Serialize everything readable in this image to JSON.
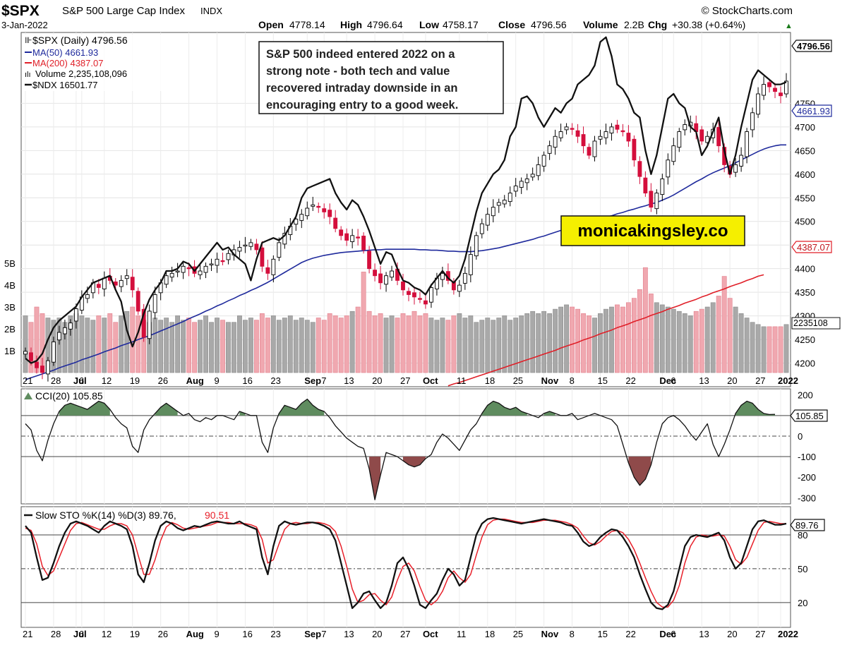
{
  "header": {
    "symbol": "$SPX",
    "name": "S&P 500 Large Cap Index",
    "exchange": "INDX",
    "date": "3-Jan-2022",
    "watermark": "© StockCharts.com",
    "open_label": "Open",
    "open": "4778.14",
    "high_label": "High",
    "high": "4796.64",
    "low_label": "Low",
    "low": "4758.17",
    "close_label": "Close",
    "close": "4796.56",
    "volume_label": "Volume",
    "volume": "2.2B",
    "chg_label": "Chg",
    "chg": "+30.38 (+0.64%)",
    "chg_arrow": "▲"
  },
  "legend": {
    "spx": "$SPX (Daily) 4796.56",
    "ma50": "MA(50) 4661.93",
    "ma200": "MA(200) 4387.07",
    "volume": "Volume 2,235,108,096",
    "ndx": "$NDX 16501.77"
  },
  "annotation": {
    "lines": [
      "S&P 500 indeed entered 2022 on a",
      "strong note - both tech and value",
      "recovered intraday downside in an",
      "encouraging entry to a good week."
    ]
  },
  "brand": "monicakingsley.co",
  "tags": {
    "price": "4796.56",
    "ma50": "4661.93",
    "ma200": "4387.07",
    "volume": "2235108",
    "cci": "105.85",
    "sto": "89.76"
  },
  "cci_legend": "CCI(20) 105.85",
  "sto_legend_a": "Slow STO %K(14) %D(3) 89.76,",
  "sto_legend_b": "90.51",
  "colors": {
    "up": "#000000",
    "down": "#d40f3c",
    "volume_up": "#a9a9a9",
    "volume_down": "#f0a8b0",
    "ma50": "#1f2a9c",
    "ma200": "#e01f28",
    "ndx": "#111111",
    "cci_fill_pos": "#5f8c5f",
    "cci_fill_neg": "#8f4a4a",
    "brand_bg": "#f5ef00",
    "sto_d": "#e8202a"
  },
  "chart_data": [
    {
      "type": "candlestick",
      "title": "$SPX S&P 500 Large Cap Index INDX",
      "x_tick_labels": [
        "21",
        "28",
        "Jul",
        "6",
        "12",
        "19",
        "26",
        "Aug",
        "9",
        "16",
        "23",
        "Sep",
        "7",
        "13",
        "20",
        "27",
        "Oct",
        "11",
        "18",
        "25",
        "Nov",
        "8",
        "15",
        "22",
        "Dec",
        "6",
        "13",
        "20",
        "27",
        "2022"
      ],
      "x_tick_days": [
        0,
        5,
        9,
        10,
        14,
        19,
        24,
        29,
        34,
        39,
        44,
        50,
        53,
        57,
        62,
        67,
        71,
        77,
        82,
        87,
        92,
        97,
        102,
        107,
        113,
        115,
        120,
        125,
        130,
        134
      ],
      "ylim": [
        4150,
        4900
      ],
      "y_ticks": [
        4200,
        4250,
        4300,
        4350,
        4400,
        4450,
        4500,
        4550,
        4600,
        4650,
        4700,
        4750
      ],
      "close": [
        4225,
        4205,
        4190,
        4180,
        4205,
        4245,
        4265,
        4275,
        4285,
        4315,
        4340,
        4345,
        4370,
        4360,
        4380,
        4375,
        4365,
        4375,
        4385,
        4355,
        4310,
        4255,
        4310,
        4345,
        4370,
        4385,
        4390,
        4395,
        4405,
        4400,
        4390,
        4395,
        4405,
        4410,
        4420,
        4415,
        4432,
        4440,
        4445,
        4450,
        4455,
        4440,
        4405,
        4390,
        4420,
        4455,
        4475,
        4490,
        4505,
        4515,
        4528,
        4535,
        4530,
        4520,
        4510,
        4485,
        4470,
        4460,
        4470,
        4465,
        4440,
        4400,
        4385,
        4370,
        4385,
        4395,
        4375,
        4355,
        4345,
        4340,
        4335,
        4325,
        4360,
        4380,
        4390,
        4375,
        4355,
        4365,
        4390,
        4430,
        4470,
        4495,
        4515,
        4530,
        4540,
        4545,
        4560,
        4575,
        4585,
        4590,
        4600,
        4620,
        4640,
        4660,
        4680,
        4690,
        4700,
        4695,
        4680,
        4660,
        4640,
        4670,
        4680,
        4690,
        4700,
        4695,
        4690,
        4670,
        4630,
        4595,
        4560,
        4530,
        4560,
        4590,
        4630,
        4660,
        4690,
        4705,
        4710,
        4690,
        4670,
        4680,
        4695,
        4660,
        4620,
        4600,
        4620,
        4640,
        4690,
        4730,
        4770,
        4790,
        4785,
        4775,
        4766,
        4797
      ],
      "ma50": [
        4165,
        4169,
        4173,
        4177,
        4181,
        4185,
        4190,
        4194,
        4198,
        4202,
        4207,
        4211,
        4215,
        4219,
        4224,
        4228,
        4232,
        4237,
        4241,
        4245,
        4250,
        4254,
        4258,
        4263,
        4268,
        4273,
        4278,
        4283,
        4288,
        4294,
        4299,
        4304,
        4310,
        4315,
        4321,
        4326,
        4332,
        4337,
        4343,
        4348,
        4354,
        4359,
        4365,
        4371,
        4378,
        4385,
        4392,
        4399,
        4406,
        4413,
        4418,
        4422,
        4425,
        4428,
        4430,
        4432,
        4434,
        4435,
        4436,
        4437,
        4438,
        4439,
        4440,
        4440,
        4441,
        4441,
        4441,
        4441,
        4441,
        4441,
        4440,
        4440,
        4439,
        4439,
        4438,
        4437,
        4437,
        4436,
        4436,
        4436,
        4437,
        4438,
        4440,
        4442,
        4444,
        4447,
        4450,
        4453,
        4456,
        4459,
        4462,
        4466,
        4469,
        4473,
        4477,
        4481,
        4484,
        4488,
        4491,
        4495,
        4498,
        4502,
        4505,
        4509,
        4512,
        4516,
        4519,
        4523,
        4526,
        4530,
        4533,
        4537,
        4540,
        4545,
        4550,
        4556,
        4563,
        4570,
        4577,
        4584,
        4590,
        4597,
        4603,
        4608,
        4613,
        4618,
        4624,
        4630,
        4636,
        4642,
        4648,
        4653,
        4657,
        4660,
        4662,
        4662
      ],
      "ma200": [
        null,
        null,
        null,
        null,
        null,
        null,
        null,
        null,
        null,
        null,
        null,
        null,
        null,
        null,
        null,
        null,
        null,
        null,
        null,
        null,
        null,
        null,
        null,
        null,
        null,
        null,
        null,
        null,
        null,
        null,
        null,
        null,
        null,
        null,
        null,
        null,
        null,
        null,
        null,
        null,
        null,
        null,
        null,
        null,
        null,
        null,
        null,
        null,
        null,
        null,
        null,
        null,
        null,
        null,
        null,
        null,
        null,
        null,
        null,
        null,
        null,
        null,
        null,
        null,
        null,
        null,
        null,
        null,
        null,
        null,
        null,
        null,
        null,
        null,
        null,
        4152,
        4156,
        4159,
        4163,
        4167,
        4171,
        4175,
        4179,
        4183,
        4187,
        4191,
        4195,
        4199,
        4203,
        4207,
        4211,
        4215,
        4219,
        4223,
        4227,
        4232,
        4236,
        4240,
        4244,
        4249,
        4253,
        4257,
        4262,
        4266,
        4270,
        4275,
        4279,
        4283,
        4288,
        4292,
        4296,
        4301,
        4305,
        4309,
        4314,
        4318,
        4322,
        4327,
        4331,
        4335,
        4340,
        4344,
        4349,
        4353,
        4357,
        4362,
        4366,
        4370,
        4375,
        4379,
        4384,
        4387
      ],
      "ndx": [
        4210,
        4200,
        4205,
        4220,
        4250,
        4275,
        4290,
        4300,
        4310,
        4320,
        4340,
        4355,
        4370,
        4375,
        4380,
        4385,
        4355,
        4330,
        4270,
        4235,
        4265,
        4305,
        4335,
        4355,
        4370,
        4395,
        4395,
        4400,
        4415,
        4410,
        4395,
        4410,
        4425,
        4440,
        4455,
        4440,
        4445,
        4430,
        4420,
        4410,
        4375,
        4420,
        4455,
        4460,
        4465,
        4460,
        4470,
        4490,
        4510,
        4550,
        4570,
        4575,
        4580,
        4585,
        4590,
        4560,
        4540,
        4525,
        4545,
        4535,
        4510,
        4480,
        4445,
        4410,
        4435,
        4430,
        4400,
        4375,
        4370,
        4360,
        4355,
        4345,
        4365,
        4380,
        4395,
        4380,
        4370,
        4385,
        4420,
        4470,
        4520,
        4560,
        4580,
        4600,
        4610,
        4630,
        4680,
        4700,
        4760,
        4765,
        4750,
        4720,
        4700,
        4720,
        4740,
        4730,
        4750,
        4760,
        4790,
        4800,
        4810,
        4830,
        4880,
        4890,
        4850,
        4790,
        4780,
        4760,
        4730,
        4720,
        4650,
        4600,
        4640,
        4700,
        4760,
        4770,
        4750,
        4740,
        4700,
        4690,
        4640,
        4660,
        4690,
        4720,
        4650,
        4600,
        4640,
        4700,
        4750,
        4800,
        4820,
        4810,
        4800,
        4790,
        4790,
        4795
      ],
      "volume_billions": [
        2.6,
        2.3,
        3.0,
        2.7,
        2.5,
        2.4,
        2.5,
        2.3,
        2.6,
        2.7,
        2.6,
        2.5,
        2.4,
        2.6,
        2.5,
        2.7,
        2.3,
        2.6,
        2.8,
        3.0,
        2.6,
        2.4,
        2.3,
        2.5,
        2.4,
        2.5,
        2.3,
        2.6,
        2.4,
        2.5,
        2.3,
        2.4,
        2.6,
        2.3,
        2.5,
        2.4,
        2.3,
        2.3,
        2.6,
        2.4,
        2.5,
        2.4,
        2.7,
        2.5,
        2.6,
        2.4,
        2.5,
        2.6,
        2.4,
        2.5,
        2.4,
        2.3,
        2.5,
        2.4,
        2.7,
        2.6,
        2.5,
        2.6,
        2.8,
        3.0,
        4.6,
        2.8,
        2.6,
        2.7,
        2.5,
        2.6,
        2.5,
        2.7,
        2.6,
        2.8,
        2.6,
        2.7,
        2.5,
        2.4,
        2.5,
        2.4,
        2.6,
        2.7,
        2.5,
        2.6,
        2.3,
        2.4,
        2.5,
        2.4,
        2.5,
        2.6,
        2.4,
        2.5,
        2.6,
        2.7,
        2.8,
        2.7,
        2.8,
        2.7,
        2.9,
        3.0,
        3.1,
        3.0,
        2.9,
        2.7,
        2.6,
        2.5,
        2.7,
        2.9,
        3.0,
        3.1,
        3.0,
        3.2,
        3.4,
        3.8,
        4.8,
        3.6,
        3.2,
        3.1,
        3.0,
        2.9,
        2.8,
        2.7,
        2.6,
        2.8,
        2.9,
        3.0,
        3.2,
        3.5,
        4.4,
        3.4,
        3.0,
        2.7,
        2.5,
        2.3,
        2.2,
        2.1,
        2.1,
        2.1,
        2.1,
        2.2
      ]
    },
    {
      "type": "line",
      "title": "CCI(20) 105.85",
      "ylim": [
        -330,
        230
      ],
      "y_ticks": [
        200,
        100,
        0,
        -100,
        -200,
        -300
      ],
      "values": [
        60,
        30,
        -70,
        -120,
        -20,
        60,
        120,
        150,
        160,
        150,
        140,
        130,
        150,
        170,
        160,
        130,
        90,
        60,
        40,
        -50,
        -80,
        30,
        80,
        110,
        140,
        160,
        140,
        120,
        100,
        110,
        80,
        70,
        90,
        80,
        100,
        100,
        90,
        80,
        120,
        110,
        100,
        100,
        -30,
        -80,
        40,
        110,
        150,
        140,
        130,
        160,
        180,
        150,
        130,
        120,
        90,
        50,
        20,
        -10,
        -30,
        -50,
        -60,
        -160,
        -310,
        -190,
        -80,
        -90,
        -100,
        -120,
        -140,
        -150,
        -140,
        -110,
        -90,
        -30,
        10,
        -10,
        -40,
        -70,
        -20,
        30,
        60,
        110,
        150,
        170,
        160,
        140,
        130,
        140,
        120,
        110,
        100,
        90,
        110,
        120,
        110,
        100,
        100,
        110,
        80,
        90,
        100,
        110,
        100,
        90,
        80,
        50,
        -40,
        -130,
        -200,
        -240,
        -210,
        -140,
        -30,
        60,
        90,
        100,
        80,
        50,
        10,
        -20,
        20,
        60,
        -40,
        -100,
        -40,
        30,
        110,
        150,
        170,
        160,
        130,
        110,
        105,
        106
      ]
    },
    {
      "type": "line",
      "title": "Slow STO %K(14) %D(3) 89.76, 90.51",
      "ylim": [
        0,
        100
      ],
      "y_ticks": [
        80,
        50,
        20
      ],
      "k": [
        88,
        82,
        60,
        40,
        42,
        55,
        70,
        82,
        90,
        92,
        90,
        88,
        85,
        82,
        88,
        92,
        90,
        88,
        85,
        70,
        45,
        38,
        55,
        75,
        88,
        92,
        90,
        86,
        84,
        86,
        88,
        87,
        89,
        91,
        92,
        91,
        90,
        90,
        92,
        89,
        87,
        85,
        60,
        45,
        70,
        88,
        92,
        90,
        89,
        90,
        91,
        91,
        90,
        88,
        85,
        75,
        55,
        35,
        15,
        20,
        28,
        30,
        22,
        15,
        20,
        35,
        55,
        60,
        50,
        35,
        18,
        15,
        22,
        28,
        40,
        50,
        45,
        35,
        40,
        60,
        80,
        90,
        94,
        95,
        94,
        93,
        92,
        91,
        90,
        91,
        92,
        93,
        94,
        93,
        92,
        91,
        89,
        88,
        82,
        74,
        70,
        72,
        78,
        82,
        85,
        84,
        78,
        70,
        60,
        45,
        32,
        20,
        15,
        14,
        18,
        30,
        50,
        70,
        78,
        80,
        79,
        78,
        80,
        82,
        75,
        60,
        50,
        55,
        70,
        85,
        92,
        93,
        91,
        89,
        89,
        90
      ],
      "d": [
        86,
        84,
        72,
        52,
        44,
        48,
        60,
        72,
        84,
        90,
        91,
        89,
        87,
        85,
        85,
        88,
        90,
        90,
        88,
        80,
        62,
        45,
        45,
        58,
        75,
        87,
        91,
        89,
        86,
        85,
        86,
        87,
        88,
        89,
        91,
        91,
        91,
        90,
        90,
        90,
        89,
        87,
        76,
        55,
        58,
        72,
        85,
        90,
        91,
        90,
        90,
        91,
        91,
        90,
        88,
        83,
        70,
        52,
        32,
        20,
        22,
        27,
        28,
        22,
        18,
        25,
        40,
        52,
        55,
        48,
        34,
        22,
        18,
        22,
        30,
        42,
        48,
        42,
        38,
        45,
        62,
        78,
        89,
        93,
        94,
        94,
        93,
        92,
        91,
        91,
        91,
        92,
        93,
        93,
        93,
        92,
        91,
        89,
        86,
        79,
        73,
        71,
        74,
        79,
        83,
        84,
        82,
        76,
        67,
        55,
        42,
        30,
        20,
        16,
        16,
        22,
        35,
        55,
        70,
        78,
        80,
        79,
        79,
        80,
        79,
        70,
        58,
        54,
        60,
        72,
        84,
        91,
        92,
        91,
        90,
        90
      ]
    }
  ]
}
